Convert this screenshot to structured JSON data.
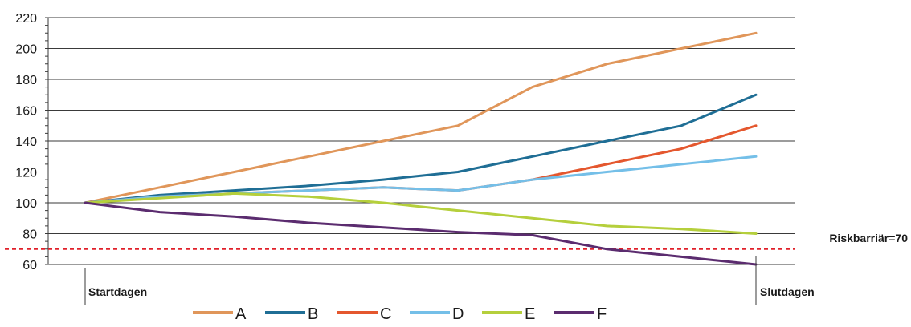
{
  "chart_data": {
    "type": "line",
    "x": [
      0,
      1,
      2,
      3,
      4,
      5,
      6,
      7,
      8,
      9
    ],
    "x_tick_labels": {
      "start": "Startdagen",
      "end": "Slutdagen"
    },
    "ylim": [
      60,
      220
    ],
    "yticks": [
      60,
      80,
      100,
      120,
      140,
      160,
      180,
      200,
      220
    ],
    "grid": true,
    "legend_position": "bottom",
    "series": [
      {
        "name": "A",
        "color": "#e0965a",
        "values": [
          100,
          110,
          120,
          130,
          140,
          150,
          175,
          190,
          200,
          210
        ]
      },
      {
        "name": "B",
        "color": "#1f6e95",
        "values": [
          100,
          105,
          108,
          111,
          115,
          120,
          130,
          140,
          150,
          170
        ]
      },
      {
        "name": "C",
        "color": "#e4572e",
        "values": [
          100,
          104,
          106,
          108,
          110,
          108,
          115,
          125,
          135,
          150
        ]
      },
      {
        "name": "D",
        "color": "#74bfe8",
        "values": [
          100,
          104,
          106,
          108,
          110,
          108,
          115,
          120,
          125,
          130
        ]
      },
      {
        "name": "E",
        "color": "#b5cf3c",
        "values": [
          100,
          103,
          106,
          104,
          100,
          95,
          90,
          85,
          83,
          80
        ]
      },
      {
        "name": "F",
        "color": "#5b2c6f",
        "values": [
          100,
          94,
          91,
          87,
          84,
          81,
          79,
          70,
          65,
          60
        ]
      }
    ],
    "threshold": {
      "value": 70,
      "label": "Riskbarriär=70",
      "color": "#e0202a"
    }
  }
}
